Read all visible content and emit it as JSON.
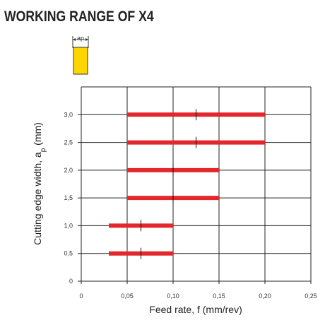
{
  "title": "WORKING RANGE OF X4",
  "icon": {
    "label": "ap",
    "fill": "#ffd500",
    "stroke": "#333333"
  },
  "chart_data": {
    "type": "bar",
    "orientation": "horizontal-range",
    "title": "WORKING RANGE OF X4",
    "xlabel": "Feed rate, f (mm/rev)",
    "ylabel_main": "Cutting edge width, a",
    "ylabel_sub": "p",
    "ylabel_unit": " (mm)",
    "xlim": [
      0,
      0.25
    ],
    "ylim": [
      0,
      3.5
    ],
    "x_ticks": [
      0,
      0.05,
      0.1,
      0.15,
      0.2,
      0.25
    ],
    "x_tick_labels": [
      "0",
      "0,05",
      "0,10",
      "0,15",
      "0,20",
      "0,25"
    ],
    "y_ticks": [
      0,
      0.5,
      1.0,
      1.5,
      2.0,
      2.5,
      3.0
    ],
    "y_tick_labels": [
      "0",
      "0,5",
      "1,0",
      "1,5",
      "2,0",
      "2,5",
      "3,0"
    ],
    "grid": true,
    "bar_color": "#e2282d",
    "ranges": [
      {
        "ap": 0.5,
        "f_min": 0.03,
        "f_max": 0.1,
        "f_rec": 0.065
      },
      {
        "ap": 1.0,
        "f_min": 0.03,
        "f_max": 0.1,
        "f_rec": 0.065
      },
      {
        "ap": 1.5,
        "f_min": 0.05,
        "f_max": 0.15,
        "f_rec": 0.1
      },
      {
        "ap": 2.0,
        "f_min": 0.05,
        "f_max": 0.15,
        "f_rec": 0.1
      },
      {
        "ap": 2.5,
        "f_min": 0.05,
        "f_max": 0.2,
        "f_rec": 0.125
      },
      {
        "ap": 3.0,
        "f_min": 0.05,
        "f_max": 0.2,
        "f_rec": 0.125
      }
    ]
  }
}
